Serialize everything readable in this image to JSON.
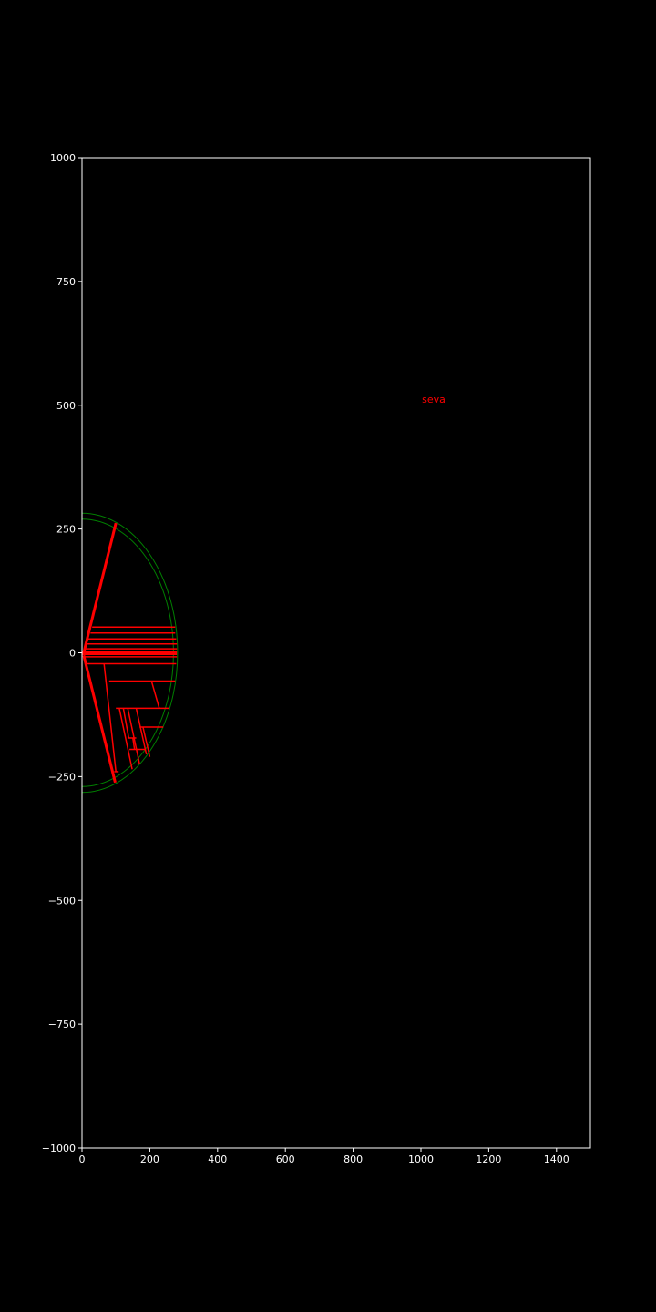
{
  "colors": {
    "background": "#000000",
    "axes": "#ffffff",
    "text": "#ffffff",
    "circle": "#008000",
    "lines": "#ff0000"
  },
  "chart_data": {
    "type": "line",
    "title": "",
    "xlabel": "",
    "ylabel": "",
    "xlim": [
      0,
      1500
    ],
    "ylim": [
      -1000,
      1000
    ],
    "xticks": [
      0,
      200,
      400,
      600,
      800,
      1000,
      1200,
      1400
    ],
    "yticks": [
      1000,
      750,
      500,
      250,
      0,
      -250,
      -500,
      -750,
      -1000
    ],
    "xtick_labels": [
      "0",
      "200",
      "400",
      "600",
      "800",
      "1000",
      "1200",
      "1400"
    ],
    "ytick_labels": [
      "1000",
      "750",
      "500",
      "250",
      "0",
      "−250",
      "−500",
      "−750",
      "−1000"
    ],
    "grid": false,
    "annotations": [
      {
        "text": "seva",
        "x": 1003,
        "y": 505,
        "color": "#ff0000"
      }
    ],
    "circles": [
      {
        "name": "",
        "center": [
          0,
          0
        ],
        "radius": 270,
        "color": "#008000"
      },
      {
        "name": "",
        "center": [
          0,
          0
        ],
        "radius": 282,
        "color": "#008000"
      }
    ],
    "segments": [
      {
        "x": [
          5,
          100
        ],
        "y": [
          0,
          262
        ],
        "width": 3
      },
      {
        "x": [
          5,
          98
        ],
        "y": [
          -5,
          -262
        ],
        "width": 3
      },
      {
        "x": [
          0,
          280
        ],
        "y": [
          0,
          0
        ],
        "width": 5
      },
      {
        "x": [
          30,
          275
        ],
        "y": [
          52,
          52
        ],
        "width": 1.5
      },
      {
        "x": [
          25,
          275
        ],
        "y": [
          40,
          40
        ],
        "width": 1.5
      },
      {
        "x": [
          18,
          278
        ],
        "y": [
          28,
          28
        ],
        "width": 1.5
      },
      {
        "x": [
          12,
          280
        ],
        "y": [
          18,
          18
        ],
        "width": 1.5
      },
      {
        "x": [
          8,
          280
        ],
        "y": [
          8,
          8
        ],
        "width": 1.5
      },
      {
        "x": [
          8,
          280
        ],
        "y": [
          -8,
          -8
        ],
        "width": 1.5
      },
      {
        "x": [
          12,
          278
        ],
        "y": [
          -22,
          -22
        ],
        "width": 1.5
      },
      {
        "x": [
          80,
          275
        ],
        "y": [
          -57,
          -57
        ],
        "width": 1.5
      },
      {
        "x": [
          100,
          258
        ],
        "y": [
          -112,
          -112
        ],
        "width": 1.5
      },
      {
        "x": [
          170,
          240
        ],
        "y": [
          -150,
          -150
        ],
        "width": 1.5
      },
      {
        "x": [
          95,
          108
        ],
        "y": [
          -240,
          -240
        ],
        "width": 1.5
      },
      {
        "x": [
          65,
          100
        ],
        "y": [
          -22,
          -240
        ],
        "width": 1.5
      },
      {
        "x": [
          205,
          228
        ],
        "y": [
          -57,
          -112
        ],
        "width": 1.5
      },
      {
        "x": [
          110,
          148
        ],
        "y": [
          -112,
          -235
        ],
        "width": 1.5
      },
      {
        "x": [
          135,
          170
        ],
        "y": [
          -112,
          -225
        ],
        "width": 1.5
      },
      {
        "x": [
          160,
          190
        ],
        "y": [
          -112,
          -205
        ],
        "width": 1.5
      },
      {
        "x": [
          180,
          200
        ],
        "y": [
          -150,
          -210
        ],
        "width": 1.5
      },
      {
        "x": [
          135,
          160
        ],
        "y": [
          -172,
          -172
        ],
        "width": 1.5
      },
      {
        "x": [
          140,
          185
        ],
        "y": [
          -195,
          -195
        ],
        "width": 1.5
      },
      {
        "x": [
          122,
          138
        ],
        "y": [
          -112,
          -172
        ],
        "width": 1.5
      },
      {
        "x": [
          150,
          155
        ],
        "y": [
          -172,
          -195
        ],
        "width": 1.5
      }
    ]
  }
}
